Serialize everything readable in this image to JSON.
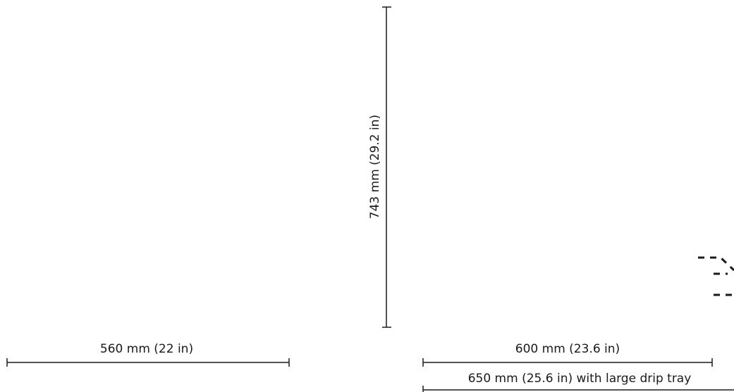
{
  "dimensions": {
    "height": {
      "label": "743 mm (29.2 in)",
      "value_mm": 743,
      "value_in": 29.2
    },
    "width": {
      "label": "560 mm (22 in)",
      "value_mm": 560,
      "value_in": 22
    },
    "depth": {
      "label": "600 mm (23.6 in)",
      "value_mm": 600,
      "value_in": 23.6
    },
    "depth_with_tray": {
      "label": "650 mm (25.6 in) with large drip tray",
      "value_mm": 650,
      "value_in": 25.6
    }
  },
  "colors": {
    "line": "#1a1a1a",
    "background": "#ffffff"
  }
}
